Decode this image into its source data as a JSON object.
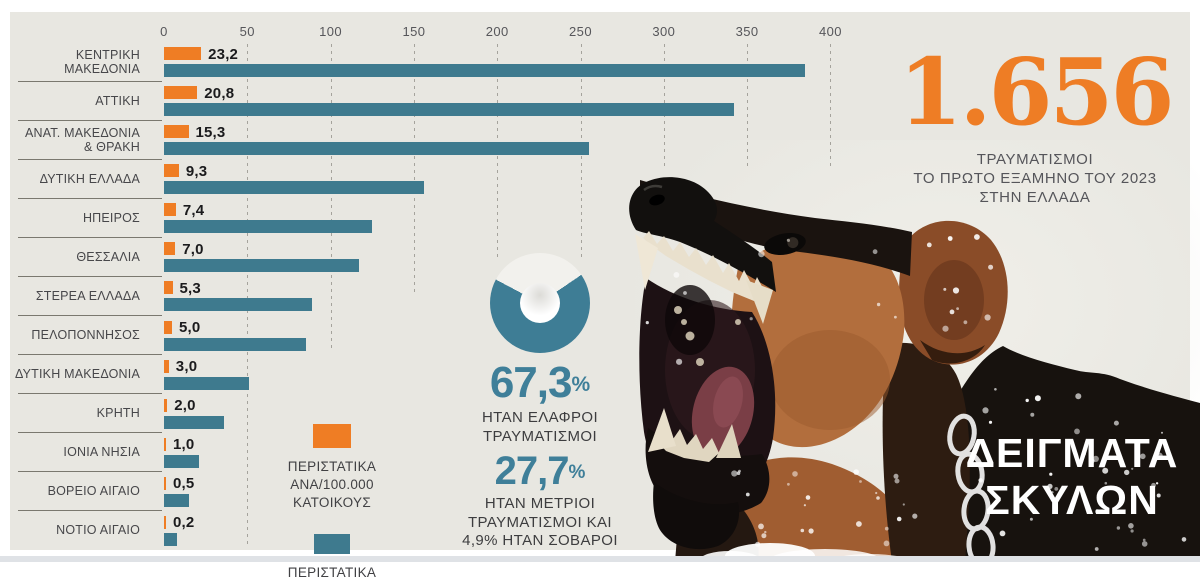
{
  "headline": {
    "value": "1.656",
    "caption_lines": [
      "ΤΡΑΥΜΑΤΙΣΜΟΙ",
      "ΤΟ ΠΡΩΤΟ ΕΞΑΜΗΝΟ ΤΟΥ 2023",
      "ΣΤΗΝ ΕΛΛΑΔΑ"
    ]
  },
  "photo_overlay": {
    "lines": [
      "ΔΕΙΓΜΑΤΑ",
      "ΣΚΥΛΩΝ"
    ]
  },
  "chart_data": [
    {
      "type": "bar",
      "orientation": "horizontal",
      "title": "",
      "xlabel": "",
      "ylabel": "",
      "xlim": [
        0,
        400
      ],
      "x_ticks": [
        0,
        50,
        100,
        150,
        200,
        250,
        300,
        350,
        400
      ],
      "grid": "dashed-vertical",
      "legend_position": "bottom-left",
      "categories": [
        "ΚΕΝΤΡΙΚΗ ΜΑΚΕΔΟΝΙΑ",
        "ΑΤΤΙΚΗ",
        "ΑΝΑΤ. ΜΑΚΕΔΟΝΙΑ & ΘΡΑΚΗ",
        "ΔΥΤΙΚΗ ΕΛΛΑΔΑ",
        "ΗΠΕΙΡΟΣ",
        "ΘΕΣΣΑΛΙΑ",
        "ΣΤΕΡΕΑ ΕΛΛΑΔΑ",
        "ΠΕΛΟΠΟΝΝΗΣΟΣ",
        "ΔΥΤΙΚΗ ΜΑΚΕΔΟΝΙΑ",
        "ΚΡΗΤΗ",
        "ΙΟΝΙΑ ΝΗΣΙΑ",
        "ΒΟΡΕΙΟ ΑΙΓΑΙΟ",
        "ΝΟΤΙΟ ΑΙΓΑΙΟ"
      ],
      "series": [
        {
          "name": "ΠΕΡΙΣΤΑΤΙΚΑ ΑΝΑ/100.000 ΚΑΤΟΙΚΟΥΣ",
          "color": "#ef7d24",
          "values": [
            23.2,
            20.8,
            15.3,
            9.3,
            7.4,
            7.0,
            5.3,
            5.0,
            3.0,
            2.0,
            1.0,
            0.5,
            0.2
          ],
          "value_labels": [
            "23,2",
            "20,8",
            "15,3",
            "9,3",
            "7,4",
            "7,0",
            "5,3",
            "5,0",
            "3,0",
            "2,0",
            "1,0",
            "0,5",
            "0,2"
          ]
        },
        {
          "name": "ΠΕΡΙΣΤΑΤΙΚΑ",
          "color": "#3e7a8e",
          "values": [
            385,
            342,
            255,
            156,
            125,
            117,
            89,
            85,
            51,
            36,
            21,
            15,
            8
          ]
        }
      ]
    },
    {
      "type": "pie",
      "subtype": "donut",
      "slices": [
        {
          "label": "ΗΤΑΝ ΕΛΑΦΡΟΙ ΤΡΑΥΜΑΤΙΣΜΟΙ",
          "value": 67.3,
          "display": "67,3",
          "color": "#3e7d95"
        },
        {
          "label": "",
          "value": 32.7,
          "display": "32,7",
          "color": "#f2f1ed"
        }
      ],
      "callouts": [
        {
          "value": "67,3",
          "suffix": "%",
          "lines": [
            "ΗΤΑΝ ΕΛΑΦΡΟΙ",
            "ΤΡΑΥΜΑΤΙΣΜΟΙ"
          ]
        },
        {
          "value": "27,7",
          "suffix": "%",
          "lines": [
            "ΗΤΑΝ ΜΕΤΡΙΟΙ",
            "ΤΡΑΥΜΑΤΙΣΜΟΙ ΚΑΙ",
            "4,9% ΗΤΑΝ ΣΟΒΑΡΟΙ"
          ]
        }
      ]
    }
  ]
}
